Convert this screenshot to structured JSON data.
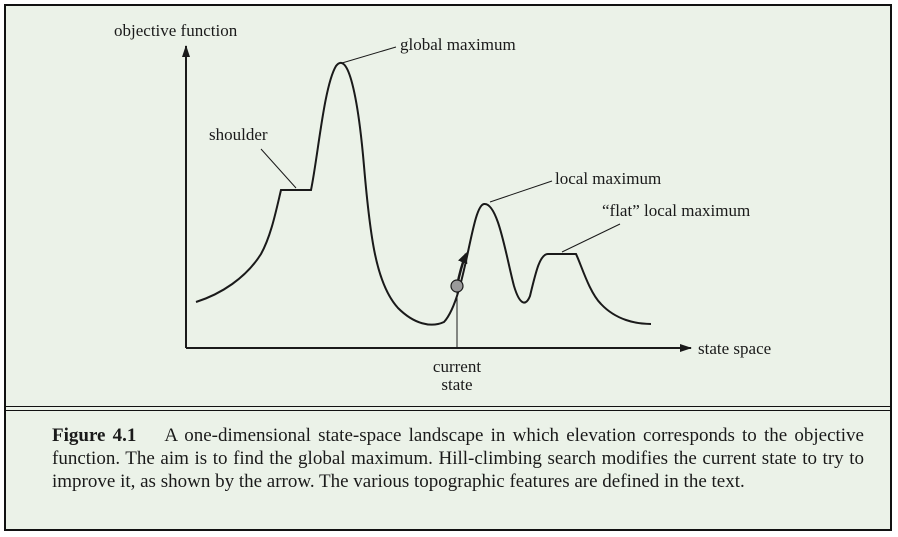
{
  "diagram": {
    "y_axis_label": "objective function",
    "x_axis_label": "state space",
    "annotations": {
      "global_maximum": "global maximum",
      "shoulder": "shoulder",
      "local_maximum": "local maximum",
      "flat_local_maximum": "“flat” local maximum",
      "current_state_line1": "current",
      "current_state_line2": "state"
    }
  },
  "caption": {
    "label": "Figure 4.1",
    "text": "A one-dimensional state-space landscape in which elevation corresponds to the objective function. The aim is to find the global maximum. Hill-climbing search modifies the current state to try to improve it, as shown by the arrow. The various topographic features are defined in the text."
  }
}
